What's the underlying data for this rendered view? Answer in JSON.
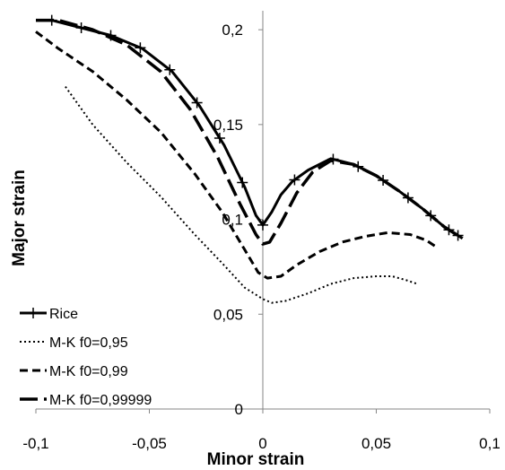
{
  "chart_data": {
    "type": "line",
    "xlabel": "Minor strain",
    "ylabel": "Major strain",
    "xlim": [
      -0.1,
      0.1
    ],
    "ylim": [
      0,
      0.21
    ],
    "x_ticks": [
      {
        "value": -0.1,
        "label": "-0,1"
      },
      {
        "value": -0.05,
        "label": "-0,05"
      },
      {
        "value": 0,
        "label": "0"
      },
      {
        "value": 0.05,
        "label": "0,05"
      },
      {
        "value": 0.1,
        "label": "0,1"
      }
    ],
    "y_ticks": [
      {
        "value": 0,
        "label": "0"
      },
      {
        "value": 0.05,
        "label": "0,05"
      },
      {
        "value": 0.1,
        "label": "0,1"
      },
      {
        "value": 0.15,
        "label": "0,15"
      },
      {
        "value": 0.2,
        "label": "0,2"
      }
    ],
    "grid": false,
    "legend_position": "bottom-left",
    "series": [
      {
        "name": "Rice",
        "style": "solid-plus",
        "x": [
          -0.1,
          -0.093,
          -0.08,
          -0.067,
          -0.053,
          -0.04,
          -0.028,
          -0.017,
          -0.008,
          -0.003,
          0.0,
          0.004,
          0.008,
          0.013,
          0.02,
          0.03,
          0.04,
          0.05,
          0.06,
          0.07,
          0.08,
          0.088
        ],
        "y": [
          0.205,
          0.205,
          0.201,
          0.197,
          0.19,
          0.178,
          0.16,
          0.139,
          0.117,
          0.102,
          0.097,
          0.104,
          0.113,
          0.12,
          0.126,
          0.132,
          0.129,
          0.123,
          0.115,
          0.106,
          0.096,
          0.09
        ],
        "markers_x": [
          -0.093,
          -0.08,
          -0.067,
          -0.054,
          -0.041,
          -0.029,
          -0.019,
          -0.009,
          0.0,
          0.014,
          0.031,
          0.042,
          0.053,
          0.064,
          0.074,
          0.082,
          0.086
        ]
      },
      {
        "name": "M-K f0=0,95",
        "style": "dotted",
        "x": [
          -0.087,
          -0.075,
          -0.06,
          -0.045,
          -0.03,
          -0.018,
          -0.008,
          0.0,
          0.004,
          0.01,
          0.02,
          0.03,
          0.04,
          0.05,
          0.057,
          0.063,
          0.068
        ],
        "y": [
          0.17,
          0.15,
          0.13,
          0.112,
          0.092,
          0.077,
          0.064,
          0.058,
          0.056,
          0.057,
          0.061,
          0.066,
          0.069,
          0.07,
          0.07,
          0.068,
          0.066
        ]
      },
      {
        "name": "M-K f0=0,99",
        "style": "dashed",
        "x": [
          -0.1,
          -0.09,
          -0.075,
          -0.06,
          -0.045,
          -0.03,
          -0.018,
          -0.008,
          -0.002,
          0.002,
          0.008,
          0.015,
          0.025,
          0.035,
          0.045,
          0.055,
          0.065,
          0.072,
          0.077
        ],
        "y": [
          0.199,
          0.19,
          0.178,
          0.163,
          0.146,
          0.124,
          0.104,
          0.084,
          0.072,
          0.069,
          0.07,
          0.076,
          0.083,
          0.088,
          0.091,
          0.093,
          0.092,
          0.089,
          0.085
        ]
      },
      {
        "name": "M-K f0=0,99999",
        "style": "long-dashed",
        "x": [
          -0.1,
          -0.09,
          -0.075,
          -0.06,
          -0.045,
          -0.032,
          -0.02,
          -0.01,
          -0.003,
          0.0,
          0.003,
          0.008,
          0.015,
          0.022,
          0.03,
          0.04,
          0.05,
          0.06,
          0.07,
          0.08,
          0.088
        ],
        "y": [
          0.205,
          0.205,
          0.2,
          0.192,
          0.178,
          0.158,
          0.133,
          0.108,
          0.092,
          0.087,
          0.088,
          0.098,
          0.114,
          0.125,
          0.131,
          0.129,
          0.123,
          0.115,
          0.106,
          0.096,
          0.09
        ]
      }
    ]
  }
}
